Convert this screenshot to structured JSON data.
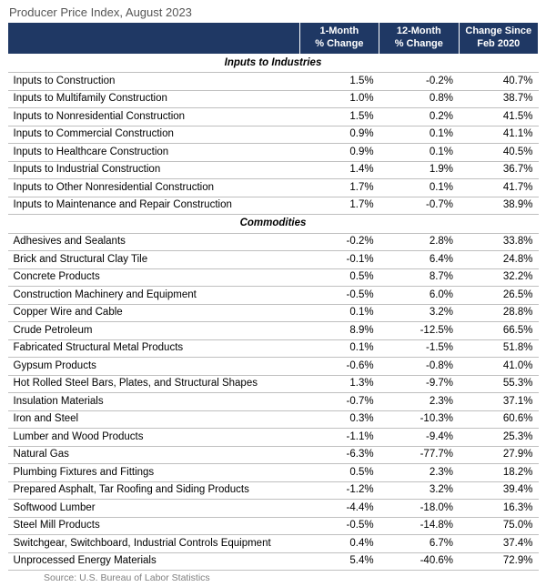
{
  "title": "Producer Price Index, August 2023",
  "source": "Source: U.S. Bureau of Labor Statistics",
  "colors": {
    "header_bg": "#1f3864",
    "header_text": "#ffffff",
    "row_border": "#bfbfbf",
    "title_color": "#555555",
    "source_color": "#7f7f7f",
    "text_color": "#000000"
  },
  "typography": {
    "family": "Arial",
    "title_size_pt": 10,
    "header_size_pt": 8.5,
    "body_size_pt": 8.5,
    "source_size_pt": 8
  },
  "columns": {
    "label": "",
    "m1": "1-Month % Change",
    "m12": "12-Month % Change",
    "feb": "Change Since Feb 2020"
  },
  "col_widths_pct": [
    55,
    15,
    15,
    15
  ],
  "sections": [
    {
      "heading": "Inputs to Industries",
      "rows": [
        {
          "label": "Inputs to Construction",
          "m1": "1.5%",
          "m12": "-0.2%",
          "feb": "40.7%"
        },
        {
          "label": "Inputs to Multifamily Construction",
          "m1": "1.0%",
          "m12": "0.8%",
          "feb": "38.7%"
        },
        {
          "label": "Inputs to Nonresidential Construction",
          "m1": "1.5%",
          "m12": "0.2%",
          "feb": "41.5%"
        },
        {
          "label": "Inputs to Commercial Construction",
          "m1": "0.9%",
          "m12": "0.1%",
          "feb": "41.1%"
        },
        {
          "label": "Inputs to Healthcare Construction",
          "m1": "0.9%",
          "m12": "0.1%",
          "feb": "40.5%"
        },
        {
          "label": "Inputs to Industrial Construction",
          "m1": "1.4%",
          "m12": "1.9%",
          "feb": "36.7%"
        },
        {
          "label": "Inputs to Other Nonresidential Construction",
          "m1": "1.7%",
          "m12": "0.1%",
          "feb": "41.7%"
        },
        {
          "label": "Inputs to Maintenance and Repair Construction",
          "m1": "1.7%",
          "m12": "-0.7%",
          "feb": "38.9%"
        }
      ]
    },
    {
      "heading": "Commodities",
      "rows": [
        {
          "label": "Adhesives and Sealants",
          "m1": "-0.2%",
          "m12": "2.8%",
          "feb": "33.8%"
        },
        {
          "label": "Brick and Structural Clay Tile",
          "m1": "-0.1%",
          "m12": "6.4%",
          "feb": "24.8%"
        },
        {
          "label": "Concrete Products",
          "m1": "0.5%",
          "m12": "8.7%",
          "feb": "32.2%"
        },
        {
          "label": "Construction Machinery and Equipment",
          "m1": "-0.5%",
          "m12": "6.0%",
          "feb": "26.5%"
        },
        {
          "label": "Copper Wire and Cable",
          "m1": "0.1%",
          "m12": "3.2%",
          "feb": "28.8%"
        },
        {
          "label": "Crude Petroleum",
          "m1": "8.9%",
          "m12": "-12.5%",
          "feb": "66.5%"
        },
        {
          "label": "Fabricated Structural Metal Products",
          "m1": "0.1%",
          "m12": "-1.5%",
          "feb": "51.8%"
        },
        {
          "label": "Gypsum Products",
          "m1": "-0.6%",
          "m12": "-0.8%",
          "feb": "41.0%"
        },
        {
          "label": "Hot Rolled Steel Bars, Plates, and Structural Shapes",
          "m1": "1.3%",
          "m12": "-9.7%",
          "feb": "55.3%"
        },
        {
          "label": "Insulation Materials",
          "m1": "-0.7%",
          "m12": "2.3%",
          "feb": "37.1%"
        },
        {
          "label": "Iron and Steel",
          "m1": "0.3%",
          "m12": "-10.3%",
          "feb": "60.6%"
        },
        {
          "label": "Lumber and Wood Products",
          "m1": "-1.1%",
          "m12": "-9.4%",
          "feb": "25.3%"
        },
        {
          "label": "Natural Gas",
          "m1": "-6.3%",
          "m12": "-77.7%",
          "feb": "27.9%"
        },
        {
          "label": "Plumbing Fixtures and Fittings",
          "m1": "0.5%",
          "m12": "2.3%",
          "feb": "18.2%"
        },
        {
          "label": "Prepared Asphalt, Tar Roofing and Siding Products",
          "m1": "-1.2%",
          "m12": "3.2%",
          "feb": "39.4%"
        },
        {
          "label": "Softwood Lumber",
          "m1": "-4.4%",
          "m12": "-18.0%",
          "feb": "16.3%"
        },
        {
          "label": "Steel Mill Products",
          "m1": "-0.5%",
          "m12": "-14.8%",
          "feb": "75.0%"
        },
        {
          "label": "Switchgear, Switchboard, Industrial Controls Equipment",
          "m1": "0.4%",
          "m12": "6.7%",
          "feb": "37.4%"
        },
        {
          "label": "Unprocessed Energy Materials",
          "m1": "5.4%",
          "m12": "-40.6%",
          "feb": "72.9%"
        }
      ]
    }
  ]
}
